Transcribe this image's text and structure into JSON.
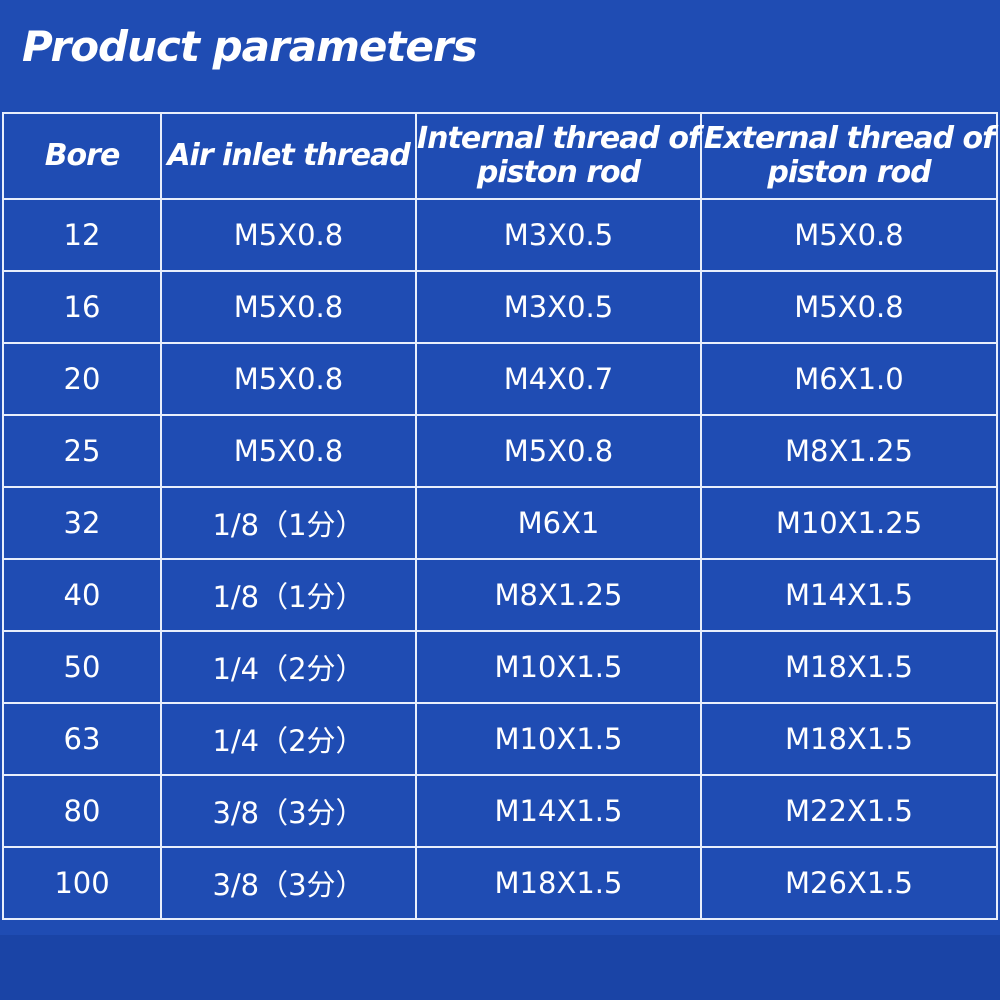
{
  "header": {
    "title": "Product parameters"
  },
  "table": {
    "columns": [
      "Bore",
      "Air inlet thread",
      "Internal thread of piston rod",
      "External thread of piston rod"
    ],
    "rows": [
      [
        "12",
        "M5X0.8",
        "M3X0.5",
        "M5X0.8"
      ],
      [
        "16",
        "M5X0.8",
        "M3X0.5",
        "M5X0.8"
      ],
      [
        "20",
        "M5X0.8",
        "M4X0.7",
        "M6X1.0"
      ],
      [
        "25",
        "M5X0.8",
        "M5X0.8",
        "M8X1.25"
      ],
      [
        "32",
        "1/8（1分）",
        "M6X1",
        "M10X1.25"
      ],
      [
        "40",
        "1/8（1分）",
        "M8X1.25",
        "M14X1.5"
      ],
      [
        "50",
        "1/4（2分）",
        "M10X1.5",
        "M18X1.5"
      ],
      [
        "63",
        "1/4（2分）",
        "M10X1.5",
        "M18X1.5"
      ],
      [
        "80",
        "3/8（3分）",
        "M14X1.5",
        "M22X1.5"
      ],
      [
        "100",
        "3/8（3分）",
        "M18X1.5",
        "M26X1.5"
      ]
    ]
  }
}
